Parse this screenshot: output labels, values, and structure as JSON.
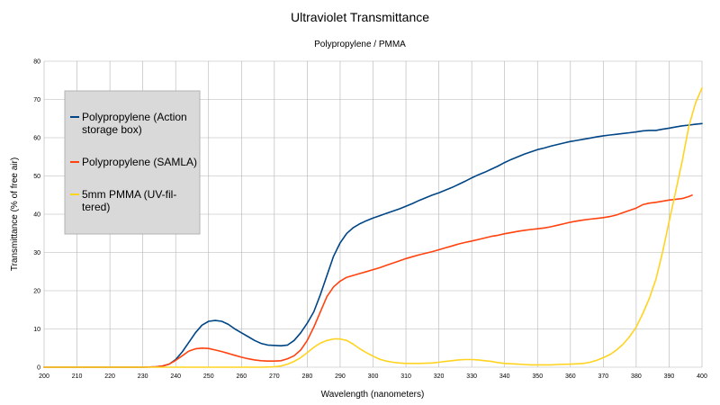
{
  "chart_data": {
    "type": "line",
    "title": "Ultraviolet Transmittance",
    "subtitle": "Polypropylene / PMMA",
    "xlabel": "Wavelength (nanometers)",
    "ylabel": "Transmittance (% of free air)",
    "xlim": [
      200,
      400
    ],
    "ylim": [
      0,
      80
    ],
    "x_ticks": [
      "200",
      "210",
      "220",
      "230",
      "240",
      "250",
      "260",
      "270",
      "280",
      "290",
      "300",
      "310",
      "320",
      "330",
      "340",
      "350",
      "360",
      "370",
      "380",
      "390",
      "400"
    ],
    "y_ticks": [
      "0",
      "10",
      "20",
      "30",
      "40",
      "50",
      "60",
      "70",
      "80"
    ],
    "grid": true,
    "legend_position": "upper-left",
    "series": [
      {
        "name": "Polypropylene (Action storage box)",
        "color": "#004586",
        "points": [
          [
            200,
            0
          ],
          [
            205,
            0
          ],
          [
            210,
            0
          ],
          [
            220,
            0
          ],
          [
            230,
            0
          ],
          [
            234,
            0.1
          ],
          [
            236,
            0.3
          ],
          [
            238,
            0.8
          ],
          [
            240,
            2
          ],
          [
            242,
            4
          ],
          [
            244,
            6.5
          ],
          [
            246,
            9
          ],
          [
            248,
            11
          ],
          [
            250,
            12
          ],
          [
            252,
            12.2
          ],
          [
            254,
            12
          ],
          [
            256,
            11.2
          ],
          [
            258,
            10
          ],
          [
            260,
            9
          ],
          [
            262,
            8
          ],
          [
            264,
            7
          ],
          [
            266,
            6.2
          ],
          [
            268,
            5.8
          ],
          [
            270,
            5.7
          ],
          [
            272,
            5.6
          ],
          [
            274,
            5.8
          ],
          [
            276,
            7
          ],
          [
            278,
            9
          ],
          [
            280,
            11.5
          ],
          [
            282,
            14.5
          ],
          [
            284,
            19
          ],
          [
            286,
            24
          ],
          [
            288,
            29
          ],
          [
            290,
            32.5
          ],
          [
            292,
            35
          ],
          [
            294,
            36.5
          ],
          [
            296,
            37.5
          ],
          [
            298,
            38.3
          ],
          [
            300,
            39
          ],
          [
            302,
            39.6
          ],
          [
            304,
            40.2
          ],
          [
            306,
            40.8
          ],
          [
            308,
            41.4
          ],
          [
            310,
            42.1
          ],
          [
            312,
            42.8
          ],
          [
            314,
            43.6
          ],
          [
            316,
            44.3
          ],
          [
            318,
            45
          ],
          [
            320,
            45.6
          ],
          [
            322,
            46.3
          ],
          [
            324,
            47
          ],
          [
            326,
            47.8
          ],
          [
            328,
            48.6
          ],
          [
            330,
            49.5
          ],
          [
            332,
            50.3
          ],
          [
            334,
            51
          ],
          [
            336,
            51.8
          ],
          [
            338,
            52.6
          ],
          [
            340,
            53.5
          ],
          [
            342,
            54.3
          ],
          [
            344,
            55
          ],
          [
            346,
            55.7
          ],
          [
            348,
            56.3
          ],
          [
            350,
            56.9
          ],
          [
            352,
            57.3
          ],
          [
            354,
            57.8
          ],
          [
            356,
            58.2
          ],
          [
            358,
            58.6
          ],
          [
            360,
            59
          ],
          [
            362,
            59.3
          ],
          [
            364,
            59.6
          ],
          [
            366,
            59.9
          ],
          [
            368,
            60.2
          ],
          [
            370,
            60.5
          ],
          [
            372,
            60.7
          ],
          [
            374,
            60.9
          ],
          [
            376,
            61.1
          ],
          [
            378,
            61.3
          ],
          [
            380,
            61.5
          ],
          [
            382,
            61.8
          ],
          [
            384,
            61.9
          ],
          [
            386,
            61.9
          ],
          [
            388,
            62.2
          ],
          [
            390,
            62.5
          ],
          [
            392,
            62.8
          ],
          [
            394,
            63.1
          ],
          [
            396,
            63.3
          ],
          [
            398,
            63.5
          ],
          [
            400,
            63.7
          ]
        ]
      },
      {
        "name": "Polypropylene (SAMLA)",
        "color": "#ff420e",
        "points": [
          [
            200,
            0
          ],
          [
            205,
            0
          ],
          [
            210,
            0
          ],
          [
            220,
            0
          ],
          [
            230,
            0
          ],
          [
            234,
            0.1
          ],
          [
            236,
            0.3
          ],
          [
            238,
            0.8
          ],
          [
            240,
            1.8
          ],
          [
            242,
            3
          ],
          [
            244,
            4.2
          ],
          [
            246,
            4.8
          ],
          [
            248,
            5
          ],
          [
            250,
            4.9
          ],
          [
            252,
            4.5
          ],
          [
            254,
            4.1
          ],
          [
            256,
            3.6
          ],
          [
            258,
            3.1
          ],
          [
            260,
            2.6
          ],
          [
            262,
            2.2
          ],
          [
            264,
            1.9
          ],
          [
            266,
            1.7
          ],
          [
            268,
            1.6
          ],
          [
            270,
            1.6
          ],
          [
            272,
            1.7
          ],
          [
            274,
            2.2
          ],
          [
            276,
            3
          ],
          [
            278,
            4.5
          ],
          [
            280,
            7
          ],
          [
            282,
            10.5
          ],
          [
            284,
            14.5
          ],
          [
            286,
            18.5
          ],
          [
            288,
            21
          ],
          [
            290,
            22.5
          ],
          [
            292,
            23.5
          ],
          [
            294,
            24
          ],
          [
            296,
            24.5
          ],
          [
            298,
            25
          ],
          [
            300,
            25.5
          ],
          [
            302,
            26
          ],
          [
            304,
            26.6
          ],
          [
            306,
            27.2
          ],
          [
            308,
            27.8
          ],
          [
            310,
            28.4
          ],
          [
            312,
            28.9
          ],
          [
            314,
            29.4
          ],
          [
            316,
            29.8
          ],
          [
            318,
            30.2
          ],
          [
            320,
            30.7
          ],
          [
            322,
            31.2
          ],
          [
            324,
            31.7
          ],
          [
            326,
            32.2
          ],
          [
            328,
            32.6
          ],
          [
            330,
            33
          ],
          [
            332,
            33.4
          ],
          [
            334,
            33.8
          ],
          [
            336,
            34.2
          ],
          [
            338,
            34.5
          ],
          [
            340,
            34.9
          ],
          [
            342,
            35.2
          ],
          [
            344,
            35.5
          ],
          [
            346,
            35.8
          ],
          [
            348,
            36
          ],
          [
            350,
            36.2
          ],
          [
            352,
            36.4
          ],
          [
            354,
            36.7
          ],
          [
            356,
            37.1
          ],
          [
            358,
            37.5
          ],
          [
            360,
            37.9
          ],
          [
            362,
            38.2
          ],
          [
            364,
            38.5
          ],
          [
            366,
            38.7
          ],
          [
            368,
            38.9
          ],
          [
            370,
            39.1
          ],
          [
            372,
            39.4
          ],
          [
            374,
            39.8
          ],
          [
            376,
            40.4
          ],
          [
            378,
            41
          ],
          [
            380,
            41.6
          ],
          [
            382,
            42.5
          ],
          [
            384,
            42.9
          ],
          [
            386,
            43.1
          ],
          [
            388,
            43.4
          ],
          [
            390,
            43.7
          ],
          [
            392,
            43.9
          ],
          [
            394,
            44.1
          ],
          [
            396,
            44.6
          ],
          [
            397,
            45
          ]
        ]
      },
      {
        "name": "5mm PMMA (UV-filtered)",
        "color": "#ffd320",
        "points": [
          [
            200,
            0
          ],
          [
            210,
            0
          ],
          [
            220,
            0
          ],
          [
            230,
            0
          ],
          [
            240,
            0
          ],
          [
            250,
            0
          ],
          [
            260,
            0
          ],
          [
            266,
            0
          ],
          [
            270,
            0.1
          ],
          [
            272,
            0.3
          ],
          [
            274,
            0.8
          ],
          [
            276,
            1.5
          ],
          [
            278,
            2.5
          ],
          [
            280,
            3.8
          ],
          [
            282,
            5.2
          ],
          [
            284,
            6.3
          ],
          [
            286,
            7
          ],
          [
            288,
            7.4
          ],
          [
            290,
            7.4
          ],
          [
            292,
            7
          ],
          [
            294,
            6
          ],
          [
            296,
            4.8
          ],
          [
            298,
            3.8
          ],
          [
            300,
            2.9
          ],
          [
            302,
            2.1
          ],
          [
            304,
            1.6
          ],
          [
            306,
            1.3
          ],
          [
            308,
            1.1
          ],
          [
            310,
            1
          ],
          [
            314,
            1
          ],
          [
            318,
            1.1
          ],
          [
            320,
            1.3
          ],
          [
            322,
            1.5
          ],
          [
            324,
            1.7
          ],
          [
            326,
            1.9
          ],
          [
            328,
            2
          ],
          [
            330,
            2
          ],
          [
            332,
            1.9
          ],
          [
            334,
            1.7
          ],
          [
            336,
            1.5
          ],
          [
            338,
            1.2
          ],
          [
            340,
            1
          ],
          [
            342,
            0.9
          ],
          [
            344,
            0.8
          ],
          [
            346,
            0.7
          ],
          [
            348,
            0.6
          ],
          [
            350,
            0.6
          ],
          [
            354,
            0.6
          ],
          [
            356,
            0.7
          ],
          [
            360,
            0.8
          ],
          [
            364,
            1
          ],
          [
            366,
            1.3
          ],
          [
            368,
            1.8
          ],
          [
            370,
            2.5
          ],
          [
            372,
            3.3
          ],
          [
            374,
            4.5
          ],
          [
            376,
            6
          ],
          [
            378,
            8
          ],
          [
            380,
            10.5
          ],
          [
            382,
            14
          ],
          [
            384,
            18
          ],
          [
            386,
            23
          ],
          [
            388,
            30
          ],
          [
            390,
            38
          ],
          [
            392,
            46
          ],
          [
            394,
            54
          ],
          [
            396,
            63
          ],
          [
            398,
            69
          ],
          [
            400,
            73
          ]
        ]
      }
    ]
  }
}
